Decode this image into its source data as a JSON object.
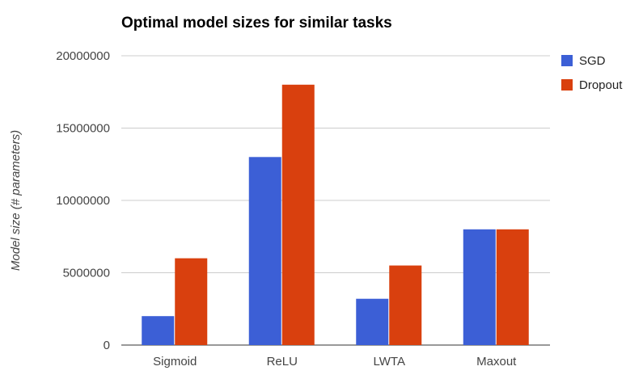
{
  "chart_data": {
    "type": "bar",
    "title": "Optimal model sizes for similar tasks",
    "xlabel": "",
    "ylabel": "Model size (# parameters)",
    "categories": [
      "Sigmoid",
      "ReLU",
      "LWTA",
      "Maxout"
    ],
    "series": [
      {
        "name": "SGD",
        "color": "#3c5fd6",
        "values": [
          2000000,
          13000000,
          3200000,
          8000000
        ]
      },
      {
        "name": "Dropout",
        "color": "#d9400e",
        "values": [
          6000000,
          18000000,
          5500000,
          8000000
        ]
      }
    ],
    "ylim": [
      0,
      20000000
    ],
    "yticks": [
      "0",
      "5000000",
      "10000000",
      "15000000",
      "20000000"
    ],
    "grid": true,
    "legend_position": "right"
  }
}
